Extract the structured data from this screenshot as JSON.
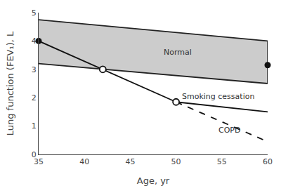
{
  "chart_data": {
    "type": "line",
    "xlabel": "Age, yr",
    "ylabel": "Lung function (FEV₁), L",
    "xlim": [
      35,
      60
    ],
    "ylim": [
      0,
      5
    ],
    "xticks": [
      35,
      40,
      45,
      50,
      55,
      60
    ],
    "yticks": [
      0,
      1,
      2,
      3,
      4,
      5
    ],
    "grid": false,
    "series": [
      {
        "type": "area",
        "x": [
          35,
          60
        ],
        "values": [
          4.75,
          4.0
        ],
        "lower": [
          3.2,
          2.5
        ],
        "color": "#cccccc"
      },
      {
        "type": "line",
        "x": [
          35,
          60
        ],
        "values": [
          4.75,
          4.0
        ],
        "color": "#222222",
        "line_style": "solid"
      },
      {
        "type": "line",
        "x": [
          35,
          60
        ],
        "values": [
          3.2,
          2.5
        ],
        "color": "#222222",
        "line_style": "solid"
      },
      {
        "type": "line",
        "x": [
          60,
          60
        ],
        "values": [
          2.5,
          4.0
        ],
        "color": "#222222",
        "line_style": "solid"
      },
      {
        "type": "line",
        "x": [
          35,
          42,
          50
        ],
        "values": [
          4.0,
          3.0,
          1.85
        ],
        "color": "#111111",
        "line_style": "solid"
      },
      {
        "type": "line",
        "x": [
          50,
          60
        ],
        "values": [
          1.85,
          1.5
        ],
        "color": "#111111",
        "line_style": "solid"
      },
      {
        "type": "line",
        "x": [
          50,
          60
        ],
        "values": [
          1.85,
          0.45
        ],
        "color": "#111111",
        "line_style": "dashed"
      },
      {
        "type": "scatter",
        "x": [
          42,
          50
        ],
        "values": [
          3.0,
          1.85
        ],
        "color": "#111111",
        "marker": "open_circle"
      },
      {
        "type": "scatter",
        "x": [
          35
        ],
        "values": [
          4.0
        ],
        "color": "#111111",
        "marker": "circle"
      },
      {
        "type": "scatter",
        "x": [
          60
        ],
        "values": [
          3.15
        ],
        "color": "#111111",
        "marker": "circle"
      }
    ],
    "annotations": [
      {
        "text": "Normal",
        "x": 48.5,
        "y": 3.6
      },
      {
        "text": "Smoking cessation",
        "x": 50.5,
        "y": 2.05
      },
      {
        "text": "COPD",
        "x": 54.5,
        "y": 0.85
      }
    ]
  }
}
